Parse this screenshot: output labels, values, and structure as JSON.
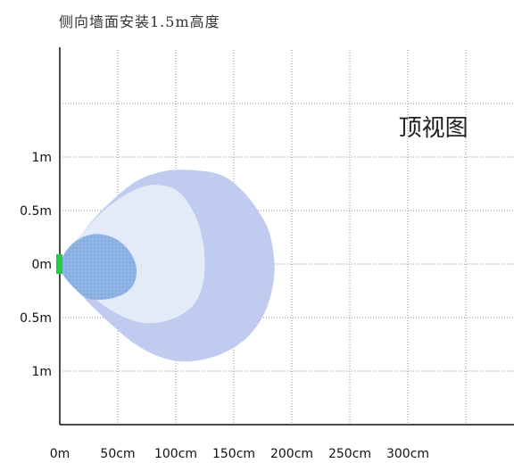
{
  "chart_data": {
    "type": "area",
    "title": "侧向墙面安装1.5m高度",
    "xlim": [
      0,
      390
    ],
    "ylim": [
      -1.5,
      2.0
    ],
    "grid": true,
    "x_grid_step": 50,
    "y_grid_step": 0.5,
    "x_ticks": [
      {
        "value": 0,
        "label": "0m"
      },
      {
        "value": 50,
        "label": "50cm"
      },
      {
        "value": 100,
        "label": "100cm"
      },
      {
        "value": 150,
        "label": "150cm"
      },
      {
        "value": 200,
        "label": "200cm"
      },
      {
        "value": 250,
        "label": "250cm"
      },
      {
        "value": 300,
        "label": "300cm"
      }
    ],
    "y_ticks": [
      {
        "value": 1,
        "label": "1m"
      },
      {
        "value": 0.5,
        "label": "0.5m"
      },
      {
        "value": 0,
        "label": "0m"
      },
      {
        "value": -0.5,
        "label": "0.5m"
      },
      {
        "value": -1,
        "label": "1m"
      }
    ],
    "annotations": [
      {
        "text": "顶视图",
        "x": 322,
        "y": 1.2
      }
    ],
    "regions": [
      {
        "color": "#bfcbef",
        "points": [
          [
            0,
            0
          ],
          [
            18,
            0.27
          ],
          [
            37,
            0.51
          ],
          [
            64,
            0.76
          ],
          [
            87,
            0.86
          ],
          [
            108,
            0.88
          ],
          [
            137,
            0.84
          ],
          [
            156,
            0.7
          ],
          [
            172,
            0.48
          ],
          [
            181,
            0.28
          ],
          [
            185,
            0
          ],
          [
            183,
            -0.24
          ],
          [
            175,
            -0.49
          ],
          [
            160,
            -0.7
          ],
          [
            137,
            -0.85
          ],
          [
            110,
            -0.91
          ],
          [
            87,
            -0.87
          ],
          [
            64,
            -0.74
          ],
          [
            41,
            -0.53
          ],
          [
            18,
            -0.28
          ]
        ]
      },
      {
        "color": "#e4ebf8",
        "points": [
          [
            0,
            0
          ],
          [
            22,
            0.32
          ],
          [
            41,
            0.53
          ],
          [
            64,
            0.69
          ],
          [
            83,
            0.74
          ],
          [
            102,
            0.68
          ],
          [
            116,
            0.47
          ],
          [
            123,
            0.23
          ],
          [
            125,
            0
          ],
          [
            123,
            -0.2
          ],
          [
            116,
            -0.37
          ],
          [
            102,
            -0.49
          ],
          [
            83,
            -0.55
          ],
          [
            64,
            -0.53
          ],
          [
            41,
            -0.41
          ],
          [
            22,
            -0.24
          ]
        ]
      },
      {
        "color": "#90b5e5",
        "dotted": true,
        "texture_color": "#5f8ecb",
        "points": [
          [
            2,
            0.05
          ],
          [
            10,
            0.18
          ],
          [
            22,
            0.26
          ],
          [
            35,
            0.28
          ],
          [
            49,
            0.23
          ],
          [
            60,
            0.12
          ],
          [
            66,
            -0.03
          ],
          [
            64,
            -0.18
          ],
          [
            55,
            -0.28
          ],
          [
            39,
            -0.33
          ],
          [
            24,
            -0.32
          ],
          [
            12,
            -0.22
          ],
          [
            2,
            -0.08
          ]
        ]
      }
    ],
    "sensor": {
      "x": 0,
      "y": 0,
      "color": "#22cc44"
    }
  }
}
